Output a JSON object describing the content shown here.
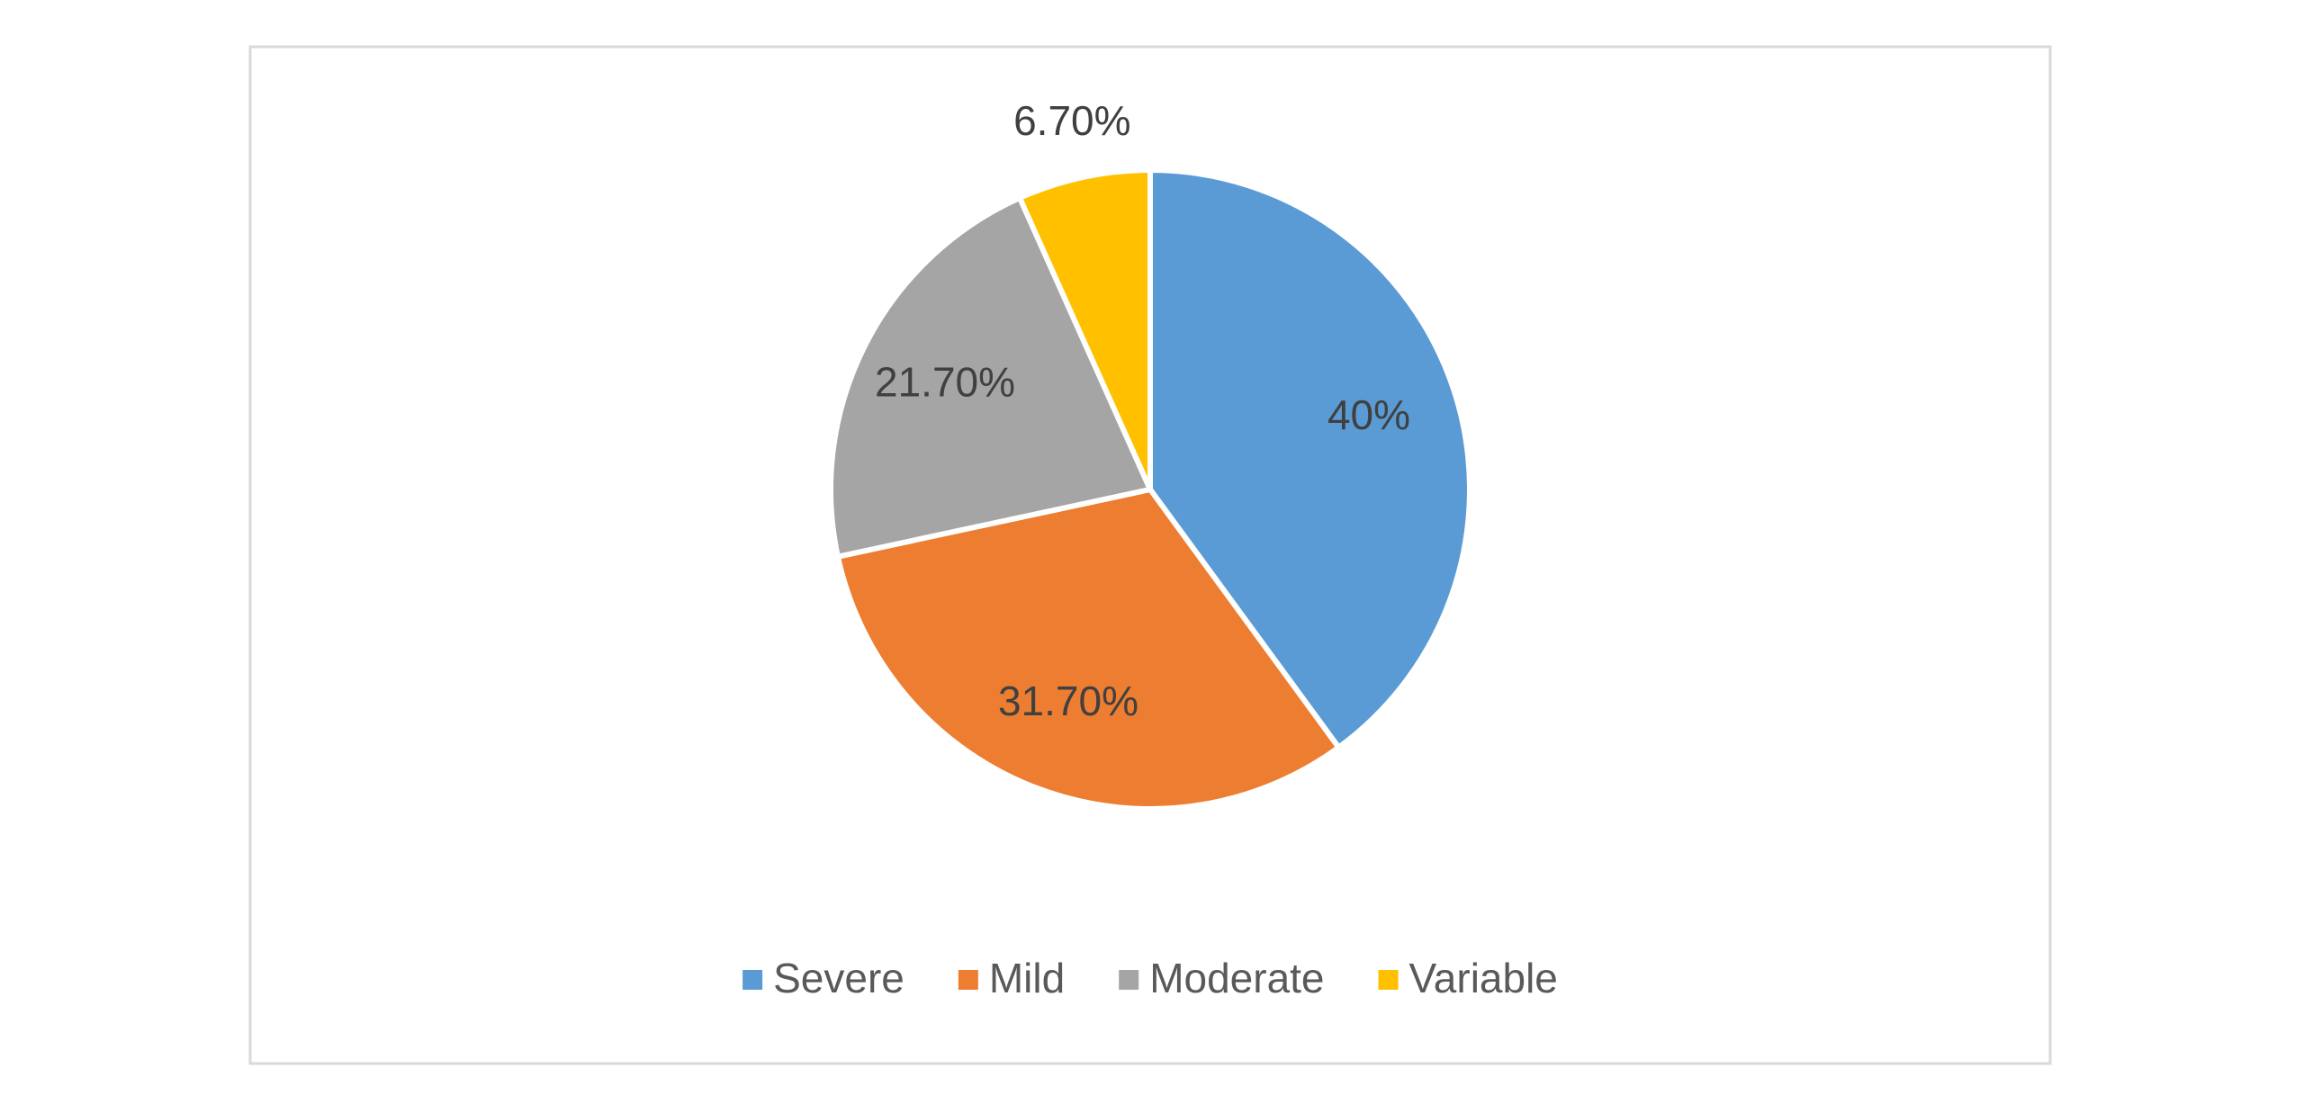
{
  "chart_data": {
    "type": "pie",
    "categories": [
      "Severe",
      "Mild",
      "Moderate",
      "Variable"
    ],
    "values": [
      40,
      31.7,
      21.7,
      6.7
    ],
    "value_labels": [
      "40%",
      "31.70%",
      "21.70%",
      "6.70%"
    ],
    "colors": [
      "#5b9bd5",
      "#ed7d31",
      "#a5a5a5",
      "#ffc000"
    ],
    "legend": "bottom"
  }
}
